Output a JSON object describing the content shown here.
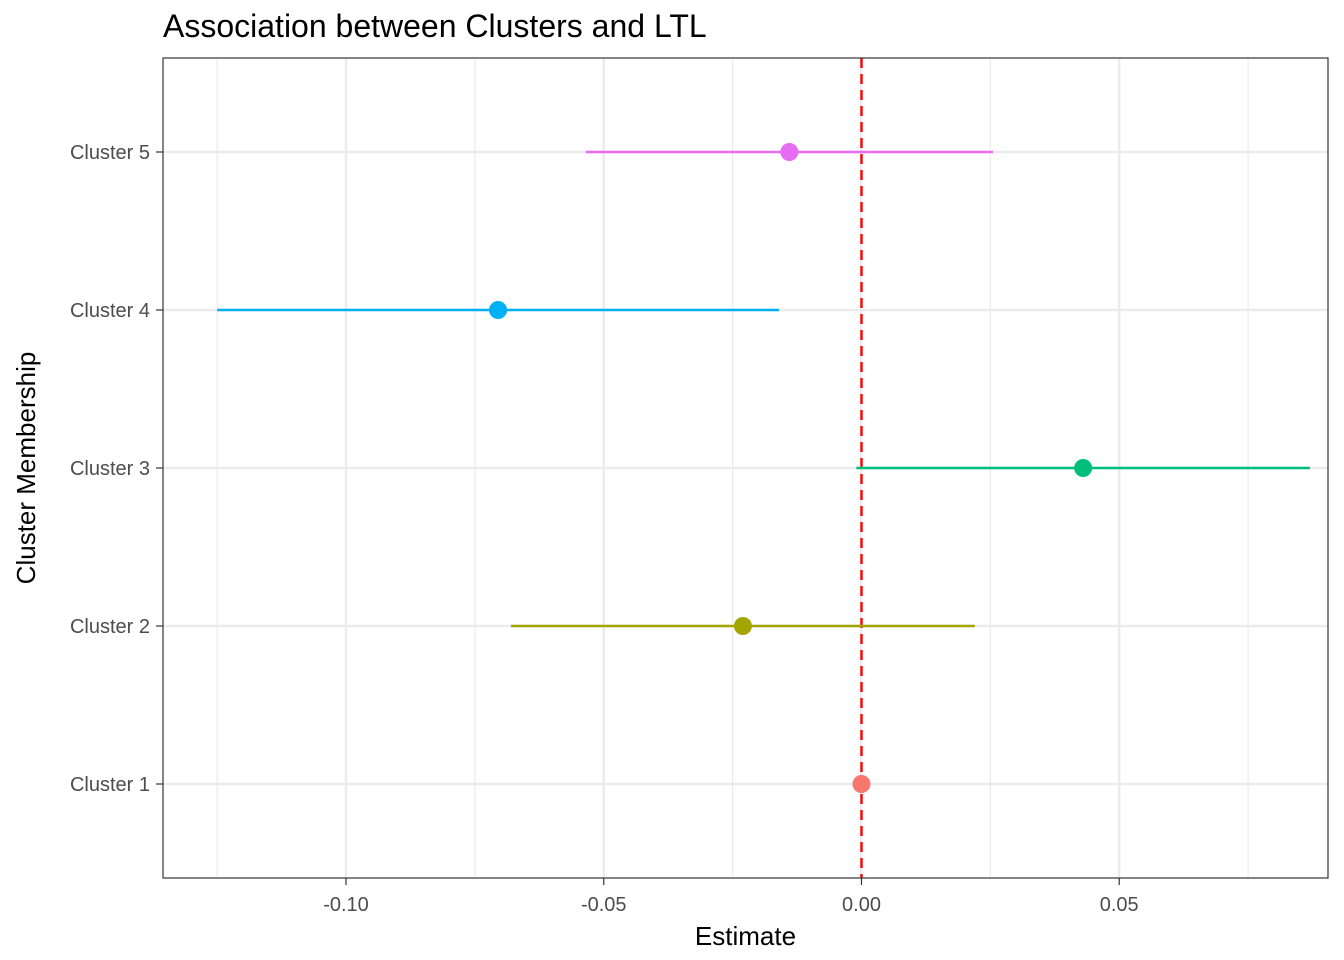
{
  "chart_data": {
    "type": "scatter",
    "subtype": "forest-plot",
    "title": "Association between Clusters and LTL",
    "xlabel": "Estimate",
    "ylabel": "Cluster Membership",
    "xlim": [
      -0.1355,
      0.0905
    ],
    "x_ticks": [
      -0.1,
      -0.05,
      0.0,
      0.05
    ],
    "x_tick_labels": [
      "-0.10",
      "-0.05",
      "0.00",
      "0.05"
    ],
    "categories": [
      "Cluster 1",
      "Cluster 2",
      "Cluster 3",
      "Cluster 4",
      "Cluster 5"
    ],
    "series": [
      {
        "category": "Cluster 1",
        "estimate": 0.0,
        "ci_low": 0.0,
        "ci_high": 0.0,
        "color": "#F8766D"
      },
      {
        "category": "Cluster 2",
        "estimate": -0.023,
        "ci_low": -0.068,
        "ci_high": 0.022,
        "color": "#A3A500"
      },
      {
        "category": "Cluster 3",
        "estimate": 0.043,
        "ci_low": -0.001,
        "ci_high": 0.087,
        "color": "#00BF7D"
      },
      {
        "category": "Cluster 4",
        "estimate": -0.0705,
        "ci_low": -0.125,
        "ci_high": -0.016,
        "color": "#00B0F6"
      },
      {
        "category": "Cluster 5",
        "estimate": -0.014,
        "ci_low": -0.0535,
        "ci_high": 0.0255,
        "color": "#E76BF3"
      }
    ],
    "reference_line": {
      "x": 0,
      "color": "#FF0000",
      "style": "dashed"
    },
    "grid": true,
    "legend": "none"
  }
}
